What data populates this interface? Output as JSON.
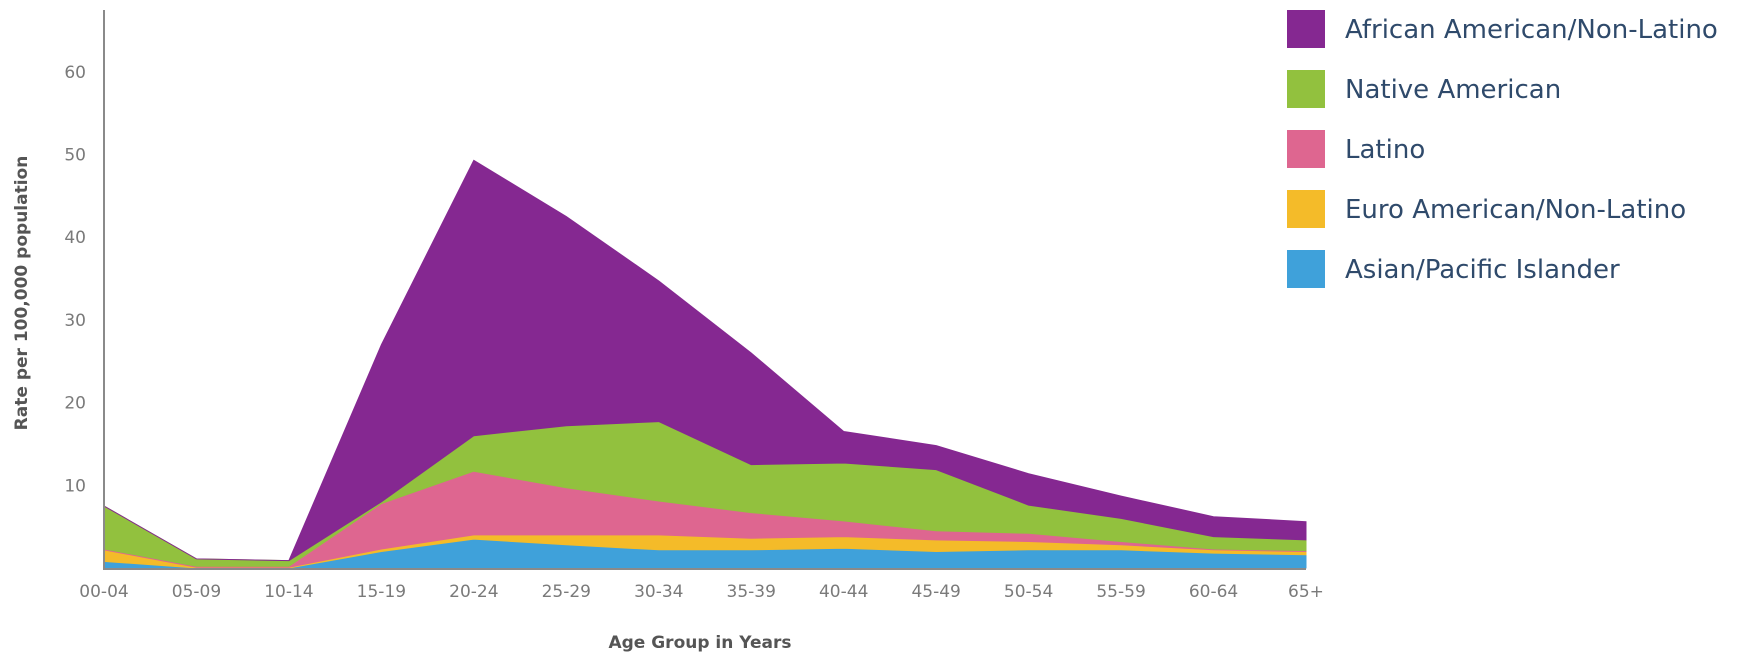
{
  "chart_data": {
    "type": "area",
    "stacked": true,
    "title": "",
    "xlabel": "Age Group in Years",
    "ylabel": "Rate per 100,000 population",
    "ylim": [
      0,
      67
    ],
    "yticks": [
      10,
      20,
      30,
      40,
      50,
      60
    ],
    "grid": false,
    "legend_position": "top-right",
    "categories": [
      "00-04",
      "05-09",
      "10-14",
      "15-19",
      "20-24",
      "25-29",
      "30-34",
      "35-39",
      "40-44",
      "45-49",
      "50-54",
      "55-59",
      "60-64",
      "65+"
    ],
    "series": [
      {
        "name": "Asian/Pacific Islander",
        "color": "#3fa1da",
        "values": [
          0.8,
          0.0,
          0.0,
          2.0,
          3.5,
          2.8,
          2.2,
          2.2,
          2.4,
          2.0,
          2.2,
          2.2,
          1.8,
          1.6
        ]
      },
      {
        "name": "Euro American/Non-Latino",
        "color": "#f4bb29",
        "values": [
          1.4,
          0.1,
          0.1,
          0.3,
          0.5,
          1.2,
          1.8,
          1.4,
          1.4,
          1.4,
          1.0,
          0.6,
          0.4,
          0.4
        ]
      },
      {
        "name": "Latino",
        "color": "#de6690",
        "values": [
          0.1,
          0.1,
          0.1,
          5.5,
          7.7,
          5.7,
          4.1,
          3.1,
          1.9,
          1.1,
          1.0,
          0.4,
          0.1,
          0.1
        ]
      },
      {
        "name": "Native American",
        "color": "#92c13e",
        "values": [
          5.2,
          0.9,
          0.7,
          0.2,
          4.3,
          7.5,
          9.6,
          5.8,
          7.0,
          7.4,
          3.4,
          2.8,
          1.5,
          1.3
        ]
      },
      {
        "name": "African American/Non-Latino",
        "color": "#852891",
        "values": [
          0.0,
          0.0,
          0.0,
          19.0,
          33.3,
          25.3,
          17.0,
          13.5,
          3.8,
          2.9,
          3.8,
          2.7,
          2.4,
          2.2
        ]
      }
    ],
    "legend": [
      {
        "label": "African American/Non-Latino",
        "color": "#852891"
      },
      {
        "label": "Native American",
        "color": "#92c13e"
      },
      {
        "label": "Latino",
        "color": "#de6690"
      },
      {
        "label": "Euro American/Non-Latino",
        "color": "#f4bb29"
      },
      {
        "label": "Asian/Pacific Islander",
        "color": "#3fa1da"
      }
    ]
  }
}
